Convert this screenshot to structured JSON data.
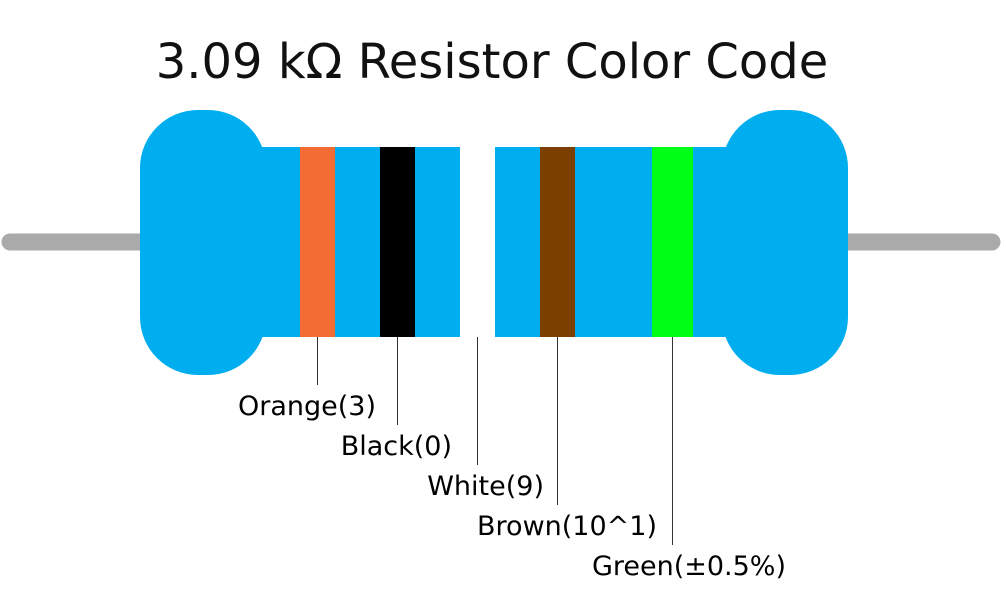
{
  "title": "3.09 kΩ Resistor Color Code",
  "bands": [
    {
      "label": "Orange(3)",
      "color": "#f26c34"
    },
    {
      "label": "Black(0)",
      "color": "#000000"
    },
    {
      "label": "White(9)",
      "color": "#ffffff"
    },
    {
      "label": "Brown(10^1)",
      "color": "#7b3f00"
    },
    {
      "label": "Green(±0.5%)",
      "color": "#00ff17"
    }
  ]
}
